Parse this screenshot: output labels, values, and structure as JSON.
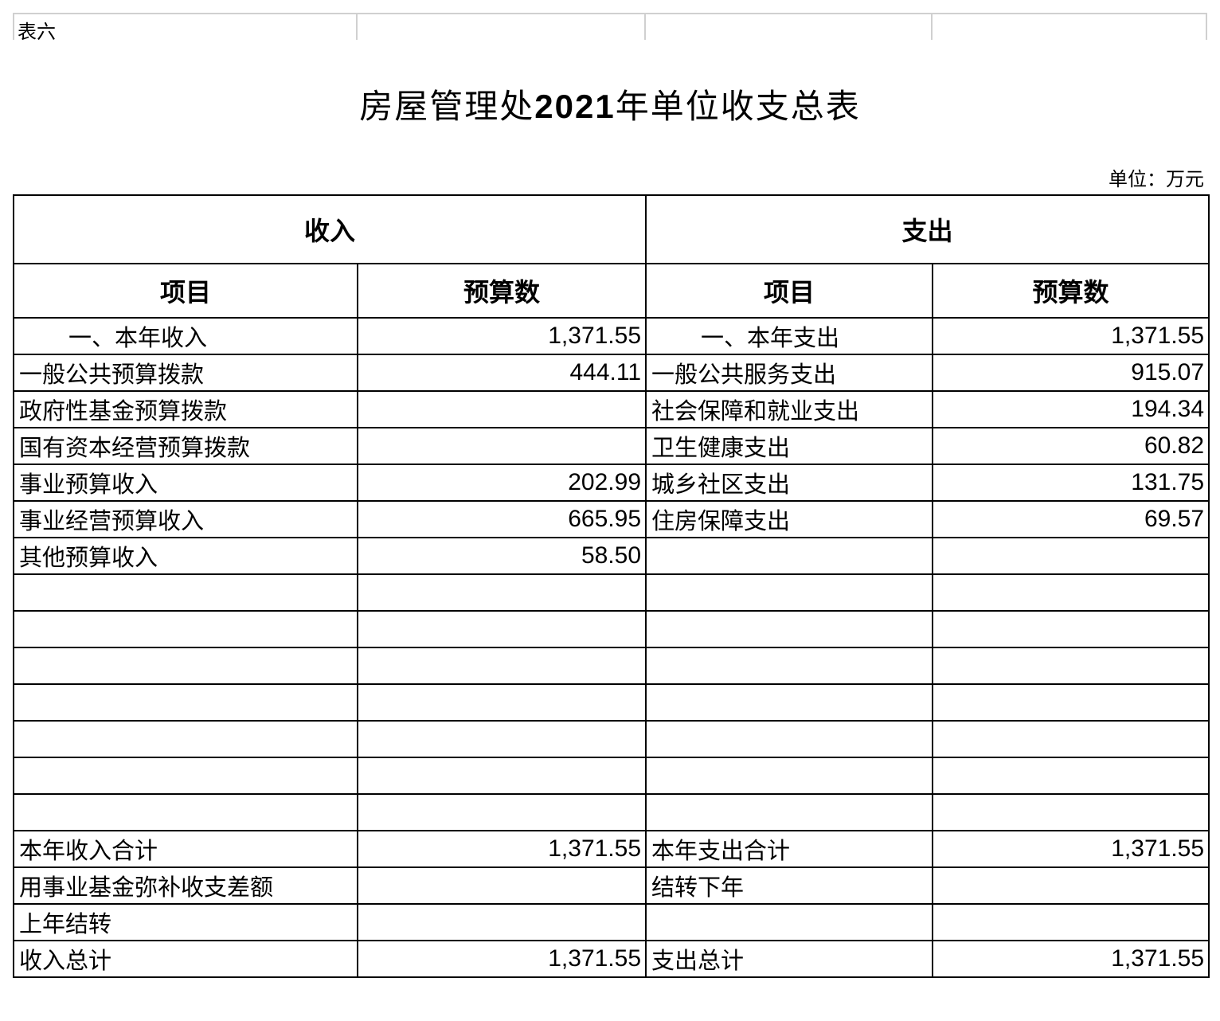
{
  "sheet_tag": "表六",
  "title_prefix": "房屋管理处",
  "title_year": "2021",
  "title_suffix": "年单位收支总表",
  "unit": "单位：万元",
  "headers": {
    "income": "收入",
    "expense": "支出",
    "item": "项目",
    "budget": "预算数"
  },
  "rows": [
    {
      "in_item": "一、本年收入",
      "in_val": "1,371.55",
      "ex_item": "一、本年支出",
      "ex_val": "1,371.55",
      "indent": true
    },
    {
      "in_item": "一般公共预算拨款",
      "in_val": "444.11",
      "ex_item": "一般公共服务支出",
      "ex_val": "915.07"
    },
    {
      "in_item": "政府性基金预算拨款",
      "in_val": "",
      "ex_item": "社会保障和就业支出",
      "ex_val": "194.34"
    },
    {
      "in_item": "国有资本经营预算拨款",
      "in_val": "",
      "ex_item": "卫生健康支出",
      "ex_val": "60.82"
    },
    {
      "in_item": "事业预算收入",
      "in_val": "202.99",
      "ex_item": "城乡社区支出",
      "ex_val": "131.75"
    },
    {
      "in_item": "事业经营预算收入",
      "in_val": "665.95",
      "ex_item": "住房保障支出",
      "ex_val": "69.57"
    },
    {
      "in_item": "其他预算收入",
      "in_val": "58.50",
      "ex_item": "",
      "ex_val": ""
    },
    {
      "in_item": "",
      "in_val": "",
      "ex_item": "",
      "ex_val": ""
    },
    {
      "in_item": "",
      "in_val": "",
      "ex_item": "",
      "ex_val": ""
    },
    {
      "in_item": "",
      "in_val": "",
      "ex_item": "",
      "ex_val": ""
    },
    {
      "in_item": "",
      "in_val": "",
      "ex_item": "",
      "ex_val": ""
    },
    {
      "in_item": "",
      "in_val": "",
      "ex_item": "",
      "ex_val": ""
    },
    {
      "in_item": "",
      "in_val": "",
      "ex_item": "",
      "ex_val": ""
    },
    {
      "in_item": "",
      "in_val": "",
      "ex_item": "",
      "ex_val": ""
    },
    {
      "in_item": "本年收入合计",
      "in_val": "1,371.55",
      "ex_item": "本年支出合计",
      "ex_val": "1,371.55"
    },
    {
      "in_item": "用事业基金弥补收支差额",
      "in_val": "",
      "ex_item": "结转下年",
      "ex_val": ""
    },
    {
      "in_item": "上年结转",
      "in_val": "",
      "ex_item": "",
      "ex_val": ""
    },
    {
      "in_item": "收入总计",
      "in_val": "1,371.55",
      "ex_item": "支出总计",
      "ex_val": "1,371.55"
    }
  ]
}
